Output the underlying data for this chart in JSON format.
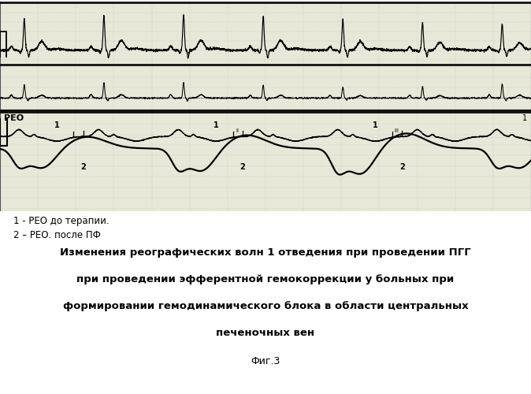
{
  "background_color": "#ffffff",
  "chart_bg": "#e8e8d8",
  "grid_major_color": "#888888",
  "grid_minor_color": "#bbbbbb",
  "line_color": "#000000",
  "label_reo": "РЕО",
  "label_1_top_right": "1",
  "legend_1": "1 - РЕО до терапии.",
  "legend_2": "2 – РЕО. после ПФ",
  "title_line1": "Изменения реографических волн 1 отведения при проведении ПГГ",
  "title_line2": "при проведении эфферентной гемокоррекции у больных при",
  "title_line3": "формировании гемодинамического блока в области центральных",
  "title_line4": "печеночных вен",
  "fig_label": "Фиг.3",
  "T_total": 7.0,
  "ecg1_period": 1.05,
  "ecg2_period": 1.05,
  "reo_period": 2.1,
  "n_points": 4000
}
